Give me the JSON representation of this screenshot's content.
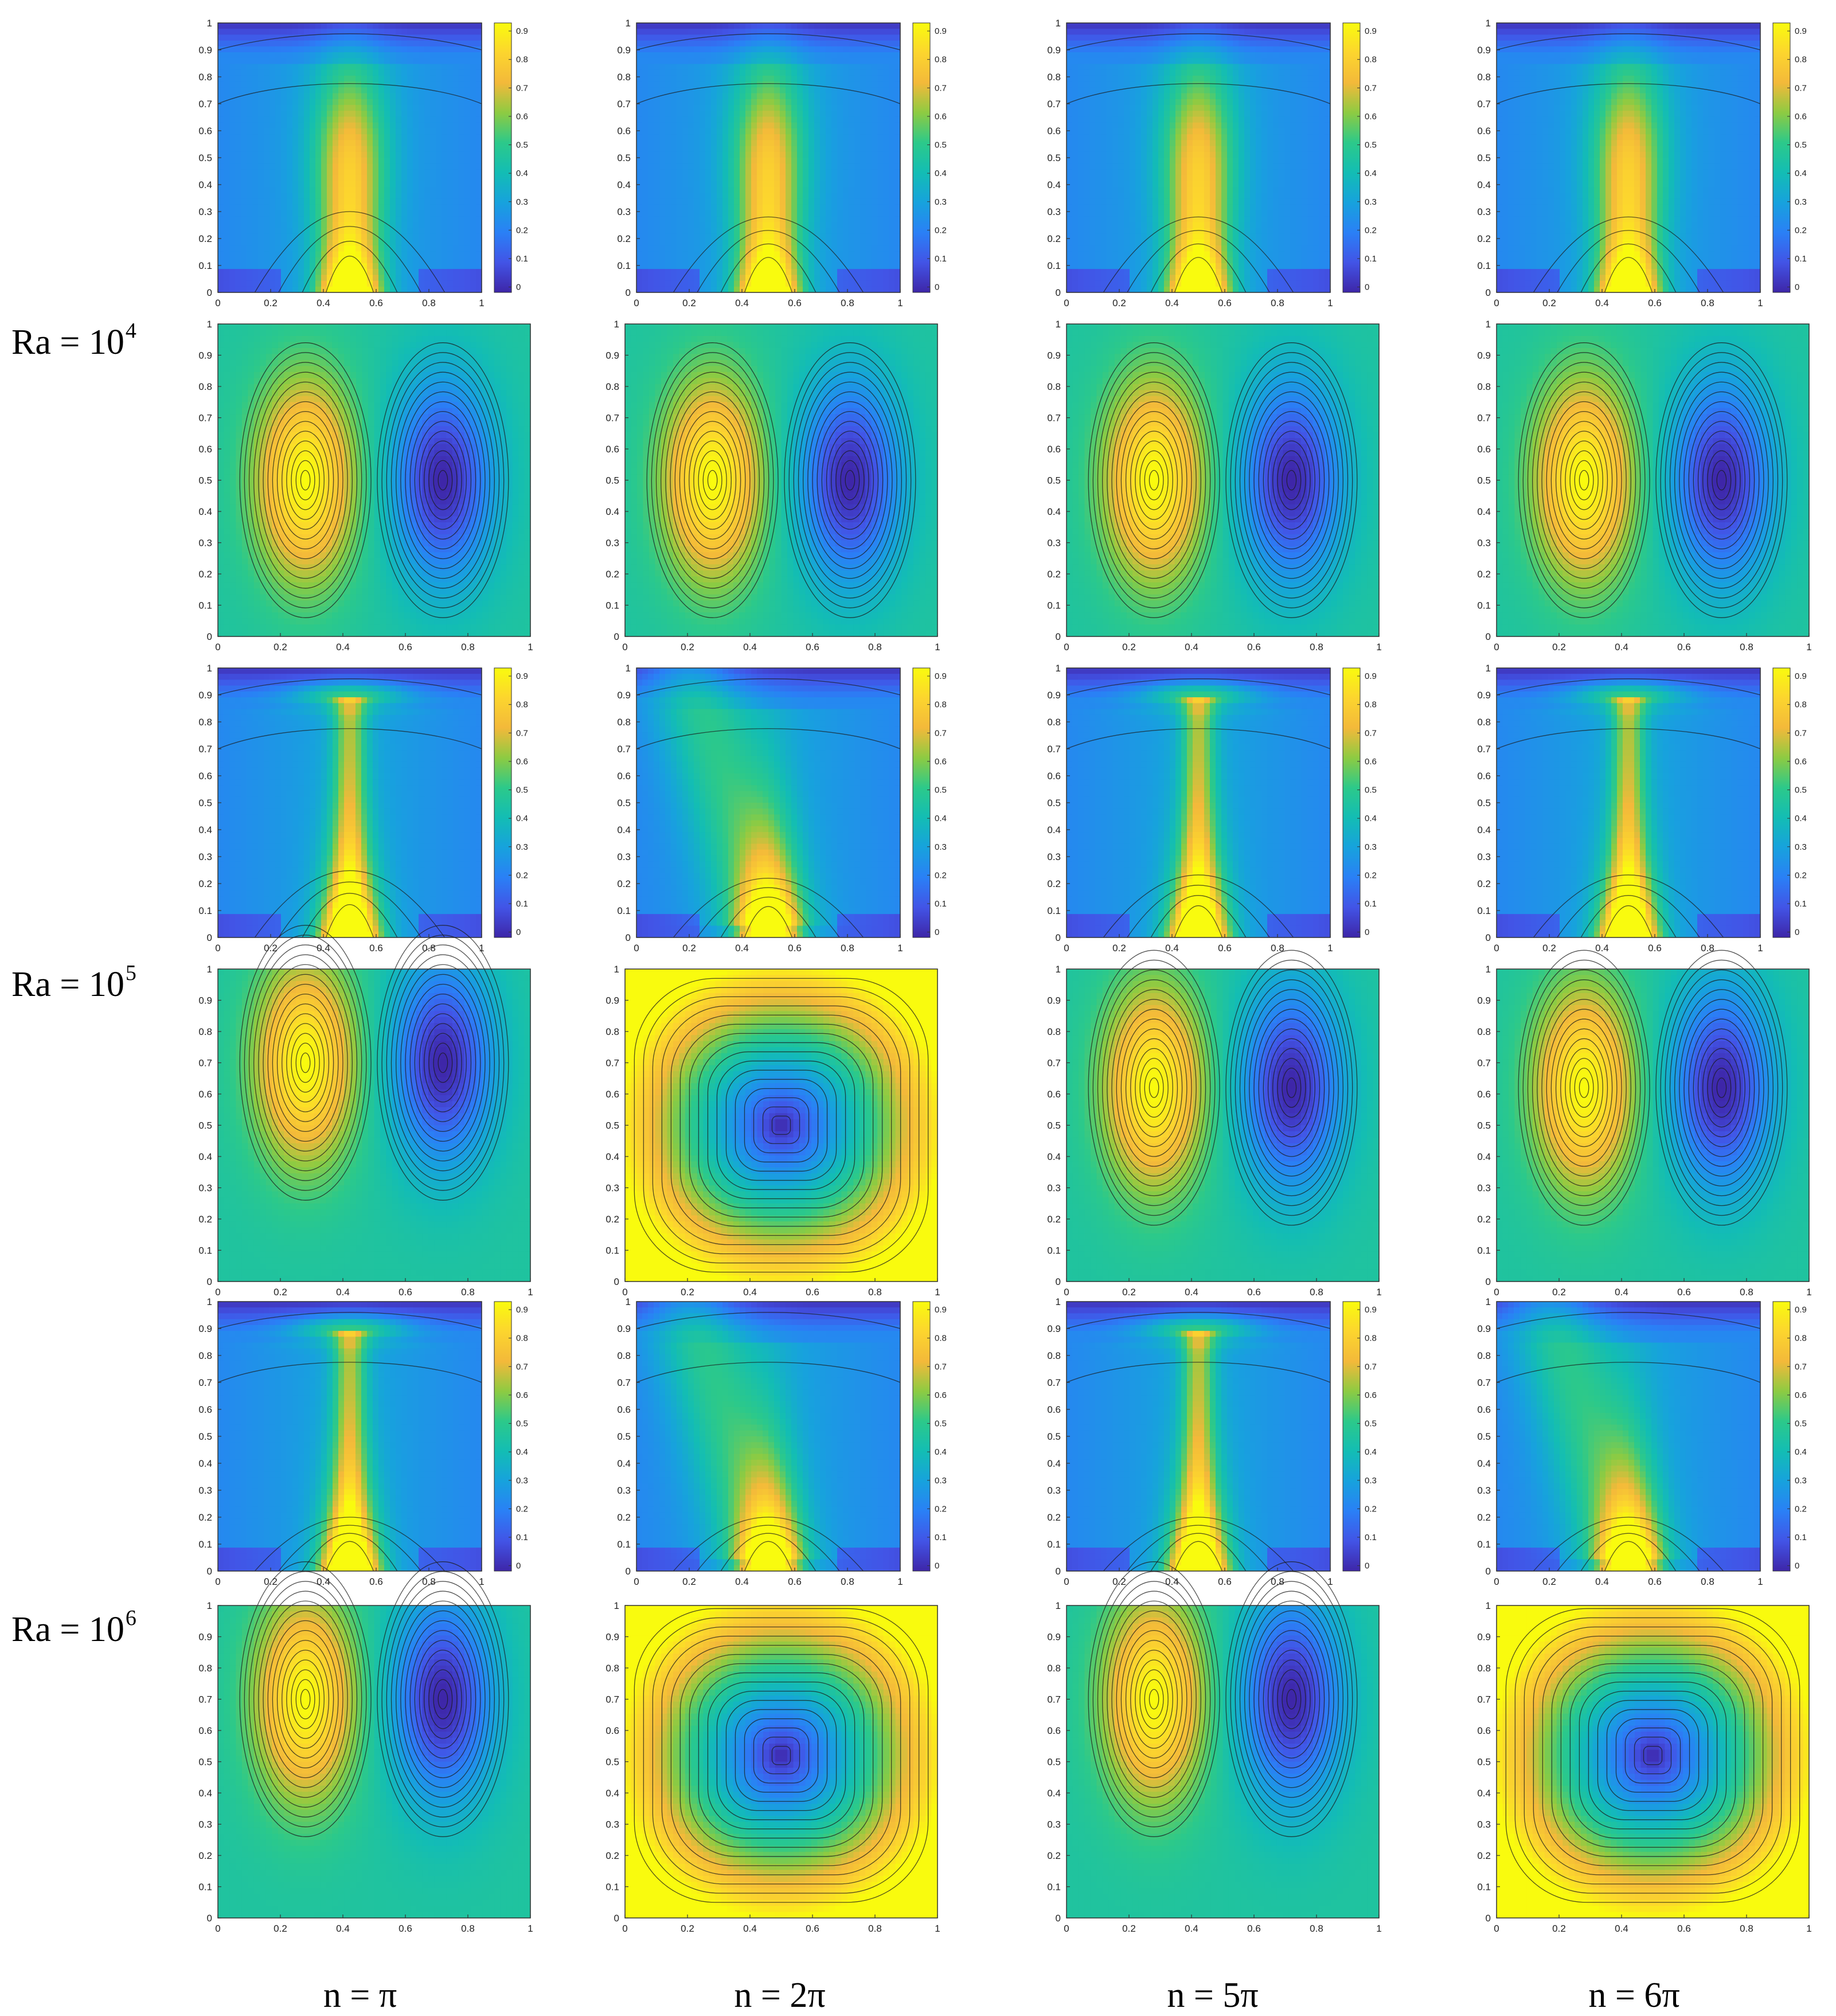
{
  "figure": {
    "rows": [
      {
        "ra_label": "Ra = 10",
        "ra_exp": "4"
      },
      {
        "ra_label": "Ra = 10",
        "ra_exp": "5"
      },
      {
        "ra_label": "Ra = 10",
        "ra_exp": "6"
      }
    ],
    "columns": [
      {
        "n_label": "n = π"
      },
      {
        "n_label": "n = 2π"
      },
      {
        "n_label": "n = 5π"
      },
      {
        "n_label": "n = 6π"
      }
    ]
  },
  "chart_data": {
    "type": "heatmap",
    "description_axes": {
      "x_ticks": [
        "0",
        "0.2",
        "0.4",
        "0.6",
        "0.8",
        "1"
      ],
      "y_ticks": [
        "0",
        "0.1",
        "0.2",
        "0.3",
        "0.4",
        "0.5",
        "0.6",
        "0.7",
        "0.8",
        "0.9",
        "1"
      ],
      "xlim": [
        0,
        1
      ],
      "ylim": [
        0,
        1
      ]
    },
    "colorbar": {
      "ticks": [
        "0",
        "0.1",
        "0.2",
        "0.3",
        "0.4",
        "0.5",
        "0.6",
        "0.7",
        "0.8",
        "0.9"
      ],
      "range": [
        0,
        0.9
      ],
      "colormap": [
        "#3e26a8",
        "#4254e6",
        "#2a80f6",
        "#17a2dd",
        "#13bdb4",
        "#2cc98a",
        "#8dcb42",
        "#f3b93a",
        "#fcd52e",
        "#f9fb0e"
      ]
    },
    "panels": [
      {
        "row": 0,
        "col": 0,
        "field": "isotherm",
        "plume": "vertical",
        "strength": 0.55
      },
      {
        "row": 0,
        "col": 1,
        "field": "isotherm",
        "plume": "vertical",
        "strength": 0.5
      },
      {
        "row": 0,
        "col": 2,
        "field": "isotherm",
        "plume": "vertical",
        "strength": 0.5
      },
      {
        "row": 0,
        "col": 3,
        "field": "isotherm",
        "plume": "vertical",
        "strength": 0.5
      },
      {
        "row": 1,
        "col": 0,
        "field": "streamline",
        "cells": "two",
        "core_y": 0.5
      },
      {
        "row": 1,
        "col": 1,
        "field": "streamline",
        "cells": "two-tilted",
        "core_y": 0.5
      },
      {
        "row": 1,
        "col": 2,
        "field": "streamline",
        "cells": "two",
        "core_y": 0.5
      },
      {
        "row": 1,
        "col": 3,
        "field": "streamline",
        "cells": "two",
        "core_y": 0.5
      },
      {
        "row": 2,
        "col": 0,
        "field": "isotherm",
        "plume": "mushroom",
        "strength": 0.42
      },
      {
        "row": 2,
        "col": 1,
        "field": "isotherm",
        "plume": "swept",
        "strength": 0.35
      },
      {
        "row": 2,
        "col": 2,
        "field": "isotherm",
        "plume": "mushroom",
        "strength": 0.38
      },
      {
        "row": 2,
        "col": 3,
        "field": "isotherm",
        "plume": "mushroom",
        "strength": 0.38
      },
      {
        "row": 3,
        "col": 0,
        "field": "streamline",
        "cells": "two",
        "core_y": 0.7
      },
      {
        "row": 3,
        "col": 1,
        "field": "streamline",
        "cells": "one",
        "core_y": 0.5
      },
      {
        "row": 3,
        "col": 2,
        "field": "streamline",
        "cells": "two",
        "core_y": 0.62
      },
      {
        "row": 3,
        "col": 3,
        "field": "streamline",
        "cells": "two",
        "core_y": 0.62
      },
      {
        "row": 4,
        "col": 0,
        "field": "isotherm",
        "plume": "mushroom",
        "strength": 0.3
      },
      {
        "row": 4,
        "col": 1,
        "field": "isotherm",
        "plume": "swept",
        "strength": 0.3
      },
      {
        "row": 4,
        "col": 2,
        "field": "isotherm",
        "plume": "mushroom",
        "strength": 0.3
      },
      {
        "row": 4,
        "col": 3,
        "field": "isotherm",
        "plume": "swept",
        "strength": 0.3
      },
      {
        "row": 5,
        "col": 0,
        "field": "streamline",
        "cells": "two",
        "core_y": 0.7
      },
      {
        "row": 5,
        "col": 1,
        "field": "streamline",
        "cells": "one",
        "core_y": 0.52
      },
      {
        "row": 5,
        "col": 2,
        "field": "streamline",
        "cells": "two",
        "core_y": 0.7
      },
      {
        "row": 5,
        "col": 3,
        "field": "streamline",
        "cells": "one",
        "core_y": 0.52
      }
    ]
  }
}
